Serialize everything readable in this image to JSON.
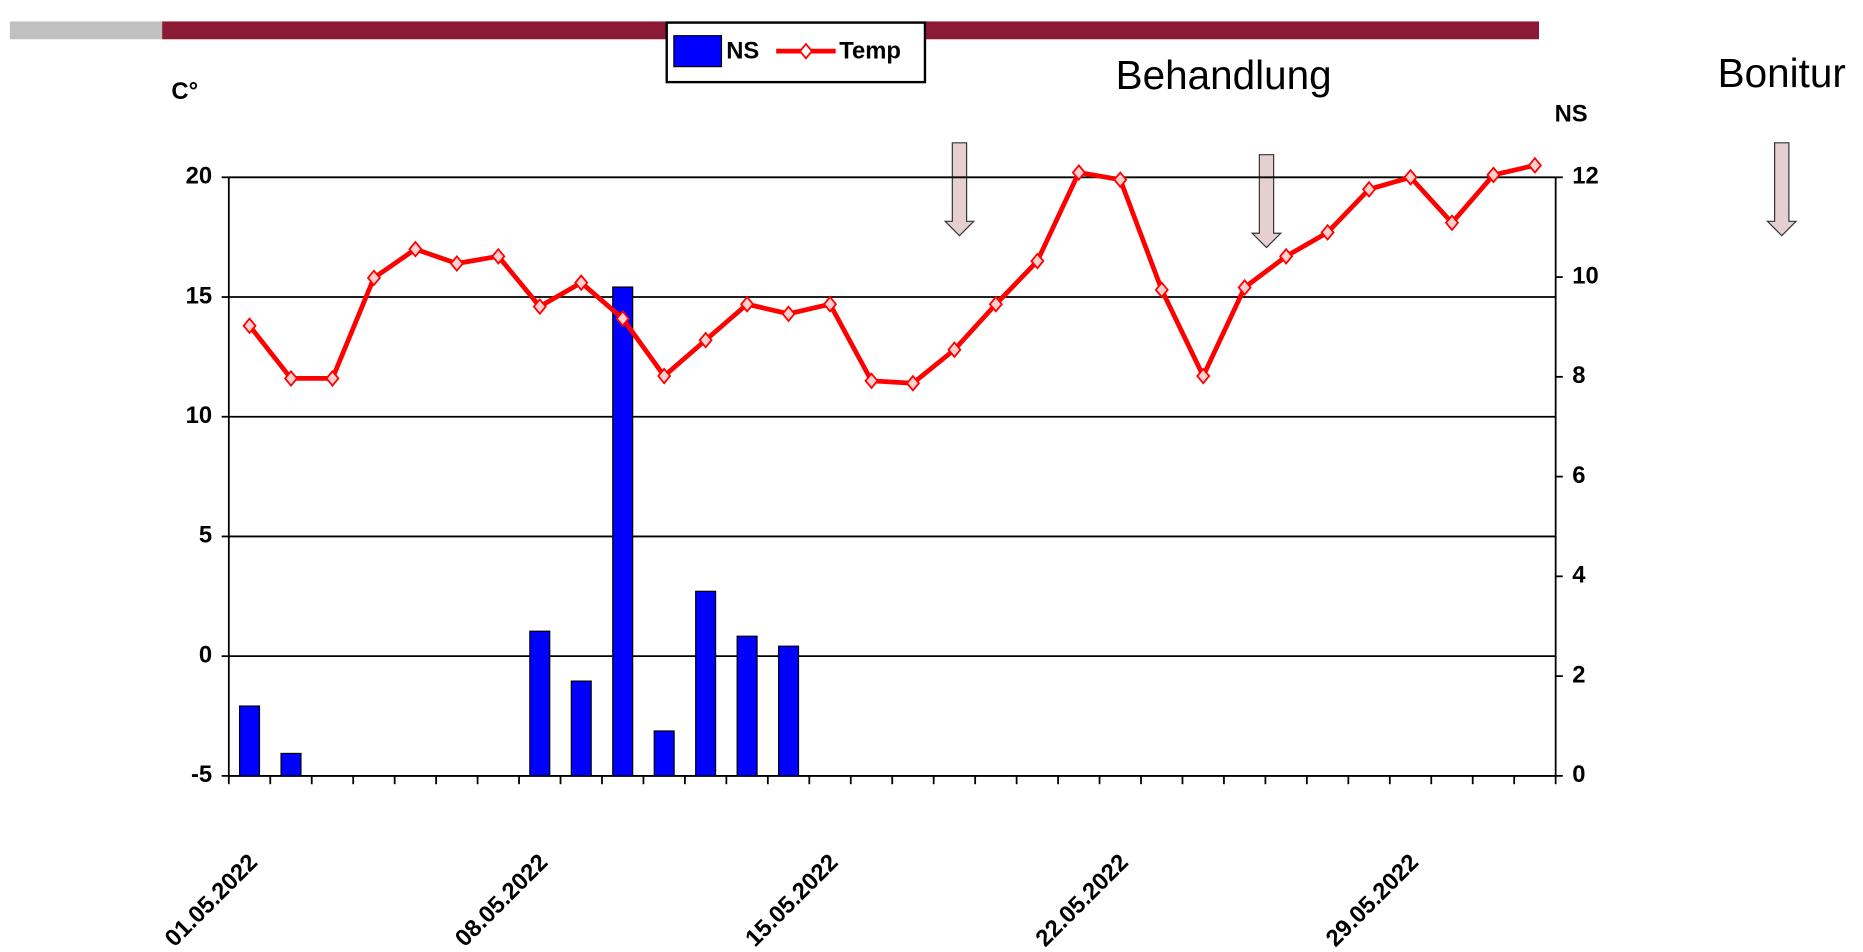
{
  "chart_data": {
    "type": "bar",
    "categories": [
      "01.05.2022",
      null,
      null,
      null,
      null,
      null,
      null,
      "08.05.2022",
      null,
      null,
      null,
      null,
      null,
      null,
      "15.05.2022",
      null,
      null,
      null,
      null,
      null,
      null,
      "22.05.2022",
      null,
      null,
      null,
      null,
      null,
      null,
      "29.05.2022",
      null,
      null,
      null
    ],
    "series": [
      {
        "name": "NS",
        "type": "bar",
        "axis": "y2",
        "color": "#0000ff",
        "values": [
          1.4,
          0.45,
          0,
          0,
          0,
          0,
          0,
          2.9,
          1.9,
          9.8,
          0.9,
          3.7,
          2.8,
          2.6,
          0,
          0,
          0,
          0,
          0,
          0,
          0,
          0,
          0,
          0,
          0,
          0,
          0,
          0,
          0,
          0,
          0,
          0
        ]
      },
      {
        "name": "Temp",
        "type": "line",
        "axis": "y",
        "color": "#ff0000",
        "values": [
          13.8,
          11.6,
          11.6,
          15.8,
          17.0,
          16.4,
          16.7,
          14.6,
          15.6,
          14.1,
          11.7,
          13.2,
          14.7,
          14.3,
          14.7,
          11.5,
          11.4,
          12.8,
          14.7,
          16.5,
          20.2,
          19.9,
          15.3,
          11.7,
          15.4,
          16.7,
          17.7,
          19.5,
          20.0,
          18.1,
          20.1,
          20.5
        ]
      }
    ],
    "ylabel": "C°",
    "y2label": "NS",
    "ylim": [
      -5,
      20
    ],
    "yticks": [
      -5,
      0,
      5,
      10,
      15,
      20
    ],
    "y2lim": [
      0,
      12
    ],
    "y2ticks": [
      0,
      2,
      4,
      6,
      8,
      10,
      12
    ],
    "grid": true,
    "legend": "top",
    "annotations": [
      "Behandlung",
      "Bonitur"
    ]
  }
}
